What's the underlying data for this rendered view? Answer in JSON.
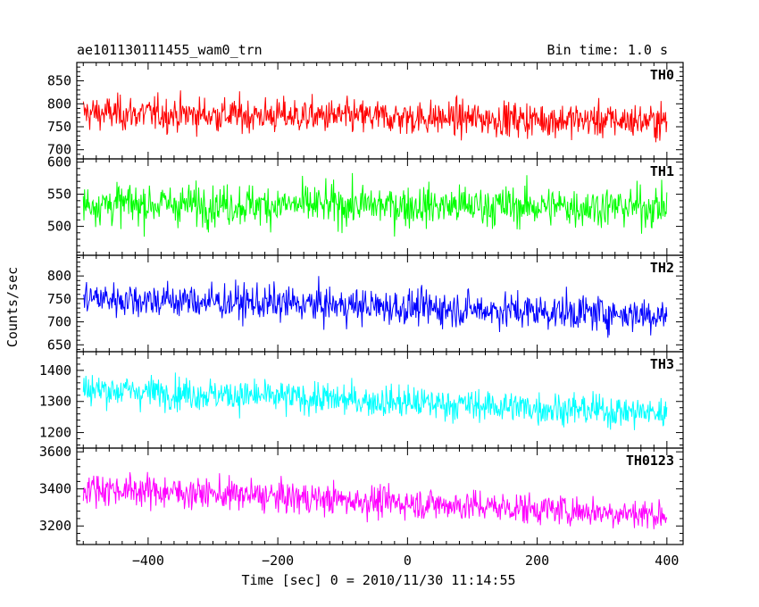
{
  "header": {
    "title": "ae101130111455_wam0_trn",
    "bin_time": "Bin time: 1.0 s"
  },
  "chart_data": {
    "type": "line",
    "title": "ae101130111455_wam0_trn",
    "subtitle": "Bin time: 1.0 s",
    "xlabel": "Time [sec] 0 = 2010/11/30 11:14:55",
    "ylabel": "Counts/sec",
    "xlim": [
      -510,
      425
    ],
    "x_range": [
      -500,
      400
    ],
    "bin_seconds": 1,
    "xticks": [
      -400,
      -200,
      0,
      200,
      400
    ],
    "xtick_labels": [
      "−400",
      "−200",
      "0",
      "200",
      "400"
    ],
    "grid": false,
    "legend": "none",
    "panels": [
      {
        "name": "TH0",
        "color": "#ff0000",
        "ylim": [
          680,
          890
        ],
        "yticks": [
          700,
          750,
          800,
          850
        ],
        "ytick_labels": [
          "700",
          "750",
          "800",
          "850"
        ],
        "mean_start": 780,
        "mean_end": 762,
        "noise": 32
      },
      {
        "name": "TH1",
        "color": "#00ff00",
        "ylim": [
          455,
          605
        ],
        "yticks": [
          500,
          550,
          600
        ],
        "ytick_labels": [
          "500",
          "550",
          "600"
        ],
        "mean_start": 535,
        "mean_end": 530,
        "noise": 27
      },
      {
        "name": "TH2",
        "color": "#0000ff",
        "ylim": [
          635,
          845
        ],
        "yticks": [
          650,
          700,
          750,
          800
        ],
        "ytick_labels": [
          "650",
          "700",
          "750",
          "800"
        ],
        "mean_start": 752,
        "mean_end": 715,
        "noise": 33
      },
      {
        "name": "TH3",
        "color": "#00ffff",
        "ylim": [
          1150,
          1460
        ],
        "yticks": [
          1200,
          1300,
          1400
        ],
        "ytick_labels": [
          "1200",
          "1300",
          "1400"
        ],
        "mean_start": 1340,
        "mean_end": 1262,
        "noise": 44
      },
      {
        "name": "TH0123",
        "color": "#ff00ff",
        "ylim": [
          3100,
          3620
        ],
        "yticks": [
          3200,
          3400,
          3600
        ],
        "ytick_labels": [
          "3200",
          "3400",
          "3600"
        ],
        "mean_start": 3405,
        "mean_end": 3260,
        "noise": 72
      }
    ]
  }
}
